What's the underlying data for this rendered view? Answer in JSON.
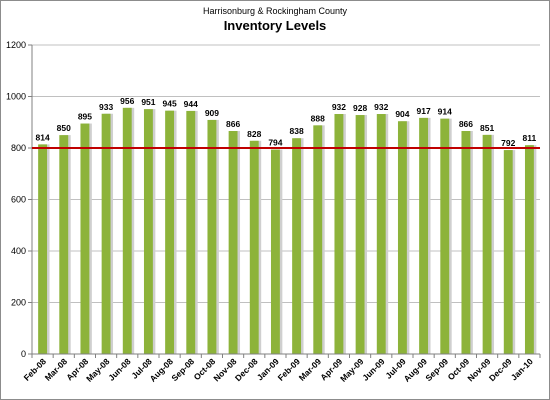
{
  "chart_data": {
    "type": "bar",
    "subtitle": "Harrisonburg & Rockingham County",
    "title": "Inventory Levels",
    "xlabel": "",
    "ylabel": "",
    "categories": [
      "Feb-08",
      "Mar-08",
      "Apr-08",
      "May-08",
      "Jun-08",
      "Jul-08",
      "Aug-08",
      "Sep-08",
      "Oct-08",
      "Nov-08",
      "Dec-08",
      "Jan-09",
      "Feb-09",
      "Mar-09",
      "Apr-09",
      "May-09",
      "Jun-09",
      "Jul-09",
      "Aug-09",
      "Sep-09",
      "Oct-09",
      "Nov-09",
      "Dec-09",
      "Jan-10"
    ],
    "values": [
      814,
      850,
      895,
      933,
      956,
      951,
      945,
      944,
      909,
      866,
      828,
      794,
      838,
      888,
      932,
      928,
      932,
      904,
      917,
      914,
      866,
      851,
      792,
      811
    ],
    "ylim": [
      0,
      1200
    ],
    "yticks": [
      0,
      200,
      400,
      600,
      800,
      1000,
      1200
    ],
    "reference_line": 800,
    "grid": true,
    "legend": "none",
    "bar_color": "#8db33a",
    "bar_shadow_color": "#cfcfcf",
    "reference_line_color": "#c00000",
    "grid_color": "#c0c0c0"
  }
}
